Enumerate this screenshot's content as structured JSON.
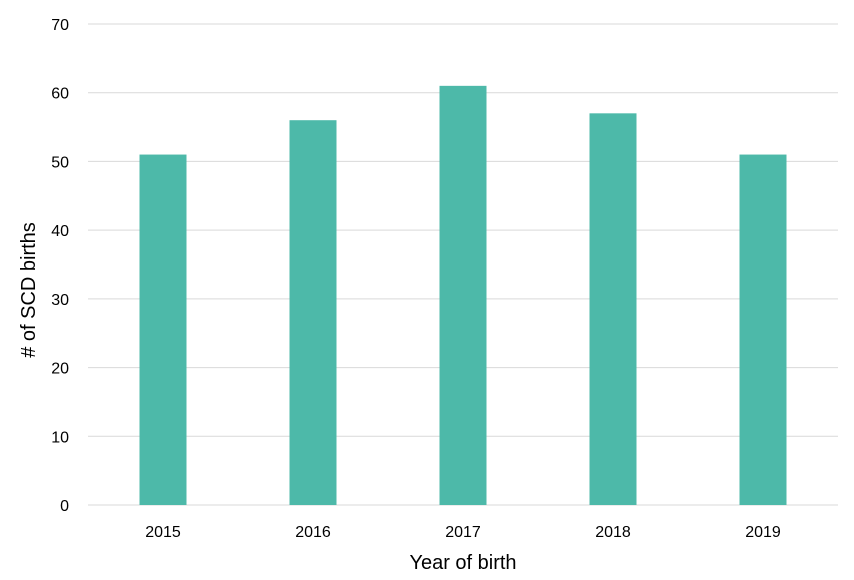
{
  "chart_data": {
    "type": "bar",
    "categories": [
      "2015",
      "2016",
      "2017",
      "2018",
      "2019"
    ],
    "values": [
      51,
      56,
      61,
      57,
      51
    ],
    "title": "",
    "xlabel": "Year of birth",
    "ylabel": "# of SCD births",
    "ylim": [
      0,
      70
    ],
    "yticks": [
      0,
      10,
      20,
      30,
      40,
      50,
      60,
      70
    ],
    "grid": true,
    "legend": "none",
    "bar_color": "#4db9a9"
  }
}
